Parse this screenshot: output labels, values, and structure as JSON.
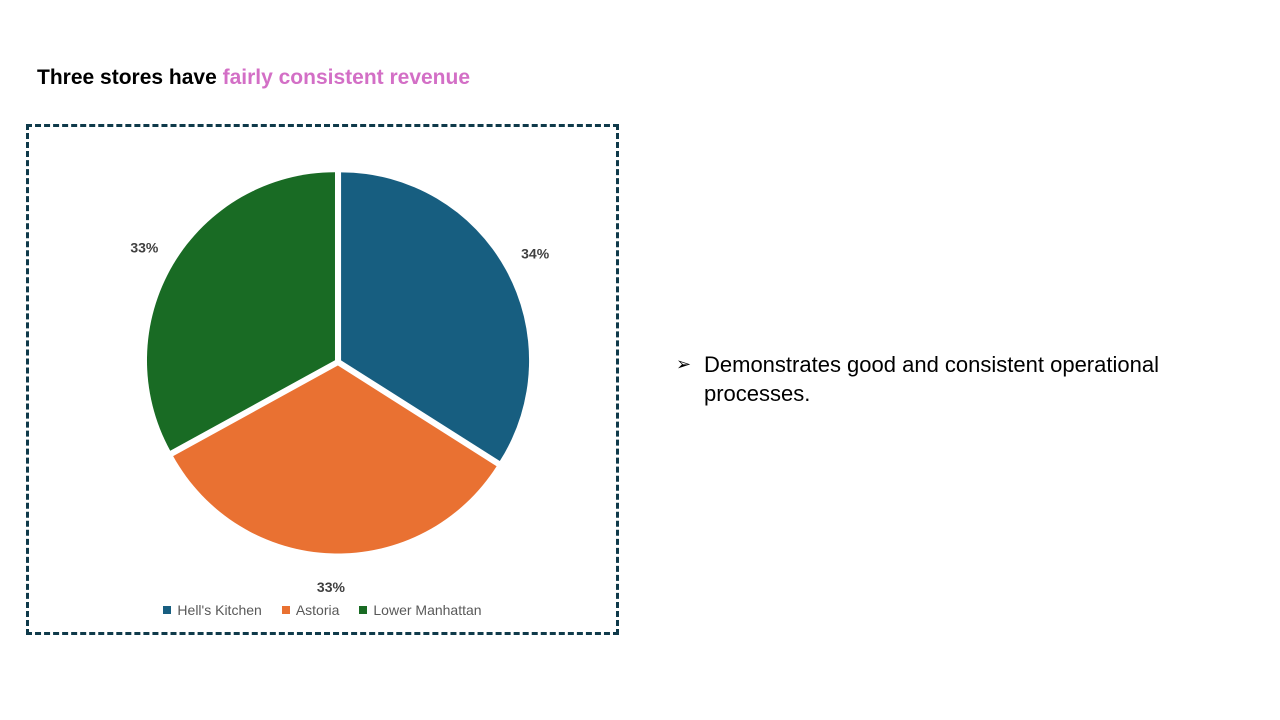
{
  "title": {
    "prefix": "Three stores have ",
    "highlight": "fairly consistent revenue"
  },
  "colors": {
    "accent": "#d36fc6",
    "frame": "#0f3a4a"
  },
  "chart_data": {
    "type": "pie",
    "categories": [
      "Hell's Kitchen",
      "Astoria",
      "Lower Manhattan"
    ],
    "values": [
      34,
      33,
      33
    ],
    "labels": [
      "34%",
      "33%",
      "33%"
    ],
    "colors": [
      "#175e80",
      "#e97132",
      "#196b24"
    ],
    "legend": "bottom",
    "start_angle": "12 o'clock, clockwise"
  },
  "bullets": [
    {
      "icon": "arrowhead-bullet-icon",
      "symbol": "➢",
      "text": "Demonstrates good and consistent operational processes."
    }
  ]
}
